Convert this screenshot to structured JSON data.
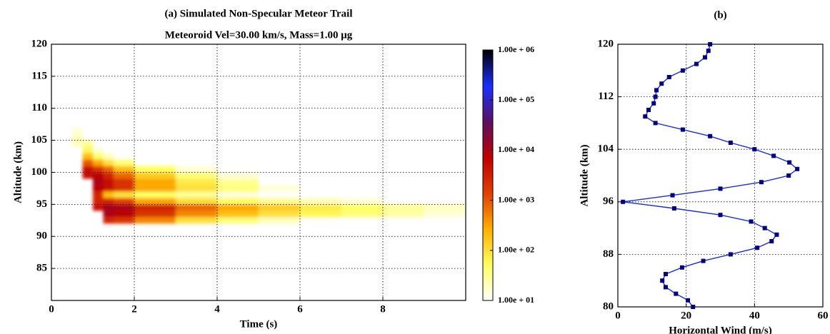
{
  "chart_data": [
    {
      "type": "heatmap",
      "title": "(a) Simulated Non-Specular Meteor Trail",
      "subtitle": "Meteoroid Vel=30.00 km/s, Mass=1.00 μg",
      "x_label": "Time (s)",
      "y_label": "Altitude (km)",
      "xlim": [
        0,
        10
      ],
      "xticks": [
        0,
        2,
        4,
        6,
        8
      ],
      "ylim": [
        80,
        120
      ],
      "yticks": [
        85,
        90,
        95,
        100,
        105,
        110,
        115,
        120
      ],
      "grid": true,
      "x_edges": [
        0.5,
        0.75,
        1,
        1.25,
        1.5,
        2,
        3,
        4,
        5,
        6,
        7,
        8,
        9,
        10
      ],
      "y_edges": [
        91,
        92,
        93,
        94,
        95,
        96,
        97,
        98,
        99,
        100,
        101,
        102,
        103,
        104,
        105,
        106,
        107,
        108
      ],
      "values": [
        [
          null,
          null,
          null,
          null,
          null,
          null,
          null,
          null,
          null,
          null,
          null,
          null,
          null
        ],
        [
          null,
          null,
          null,
          3000,
          2000,
          500,
          100,
          40,
          20,
          null,
          null,
          null,
          null
        ],
        [
          null,
          null,
          null,
          10000,
          8000,
          2000,
          500,
          200,
          100,
          60,
          40,
          25,
          15
        ],
        [
          null,
          null,
          5000,
          12000,
          10000,
          3000,
          800,
          300,
          150,
          80,
          50,
          30,
          20
        ],
        [
          null,
          null,
          3000,
          3000,
          1500,
          300,
          100,
          50,
          30,
          20,
          15,
          null,
          null
        ],
        [
          null,
          null,
          3000,
          200,
          100,
          50,
          30,
          15,
          null,
          null,
          null,
          null,
          null
        ],
        [
          null,
          null,
          8000,
          5000,
          2000,
          300,
          100,
          40,
          15,
          null,
          null,
          null,
          null
        ],
        [
          null,
          null,
          10000,
          6000,
          2000,
          300,
          80,
          30,
          null,
          null,
          null,
          null,
          null
        ],
        [
          null,
          6000,
          8000,
          3000,
          800,
          150,
          40,
          15,
          null,
          null,
          null,
          null,
          null
        ],
        [
          null,
          5000,
          2000,
          800,
          200,
          50,
          15,
          null,
          null,
          null,
          null,
          null,
          null
        ],
        [
          null,
          1000,
          300,
          100,
          40,
          null,
          null,
          null,
          null,
          null,
          null,
          null,
          null
        ],
        [
          null,
          200,
          50,
          20,
          null,
          null,
          null,
          null,
          null,
          null,
          null,
          null,
          null
        ],
        [
          null,
          60,
          15,
          null,
          null,
          null,
          null,
          null,
          null,
          null,
          null,
          null,
          null
        ],
        [
          20,
          30,
          null,
          null,
          null,
          null,
          null,
          null,
          null,
          null,
          null,
          null,
          null
        ],
        [
          20,
          null,
          null,
          null,
          null,
          null,
          null,
          null,
          null,
          null,
          null,
          null,
          null
        ],
        [
          15,
          null,
          null,
          null,
          null,
          null,
          null,
          null,
          null,
          null,
          null,
          null,
          null
        ],
        [
          null,
          null,
          null,
          null,
          null,
          null,
          null,
          null,
          null,
          null,
          null,
          null,
          null
        ]
      ],
      "color_log_scale": true,
      "clim": [
        10,
        1000000
      ],
      "colormap": [
        "#ffffff",
        "#ffff60",
        "#ffb000",
        "#e04000",
        "#c00000",
        "#5a1060",
        "#1a30ff",
        "#000000"
      ],
      "colorbar_ticks": [
        {
          "value": 10,
          "label": "1.00e + 01"
        },
        {
          "value": 100,
          "label": "1.00e + 02"
        },
        {
          "value": 1000,
          "label": "1.00e + 03"
        },
        {
          "value": 10000,
          "label": "1.00e + 04"
        },
        {
          "value": 100000,
          "label": "1.00e + 05"
        },
        {
          "value": 1000000,
          "label": "1.00e + 06"
        }
      ]
    },
    {
      "type": "line",
      "title": "(b)",
      "x_label": "Horizontal Wind (m/s)",
      "y_label": "Altitude (km)",
      "xlim": [
        0,
        60
      ],
      "xticks": [
        0,
        20,
        40,
        60
      ],
      "ylim": [
        80,
        120
      ],
      "yticks": [
        80,
        88,
        96,
        104,
        112,
        120
      ],
      "grid": true,
      "color": "#1a2ecc",
      "marker_color": "#000080",
      "y": [
        80,
        81,
        82,
        83,
        84,
        85,
        86,
        87,
        88,
        89,
        90,
        91,
        92,
        93,
        94,
        95,
        96,
        97,
        98,
        99,
        100,
        101,
        102,
        103,
        104,
        105,
        106,
        107,
        108,
        109,
        110,
        111,
        112,
        113,
        114,
        115,
        116,
        117,
        118,
        119,
        120
      ],
      "values": [
        22,
        20.5,
        17,
        14,
        13,
        14,
        18.8,
        25,
        33,
        40.8,
        45,
        46.5,
        43,
        39,
        30,
        16.5,
        1.5,
        16,
        30,
        42,
        50,
        52.5,
        50.2,
        45.6,
        40,
        33,
        27,
        19,
        11,
        8,
        9,
        10.5,
        11,
        11.3,
        12.8,
        15,
        19,
        23,
        25.5,
        26.5,
        27
      ]
    }
  ]
}
